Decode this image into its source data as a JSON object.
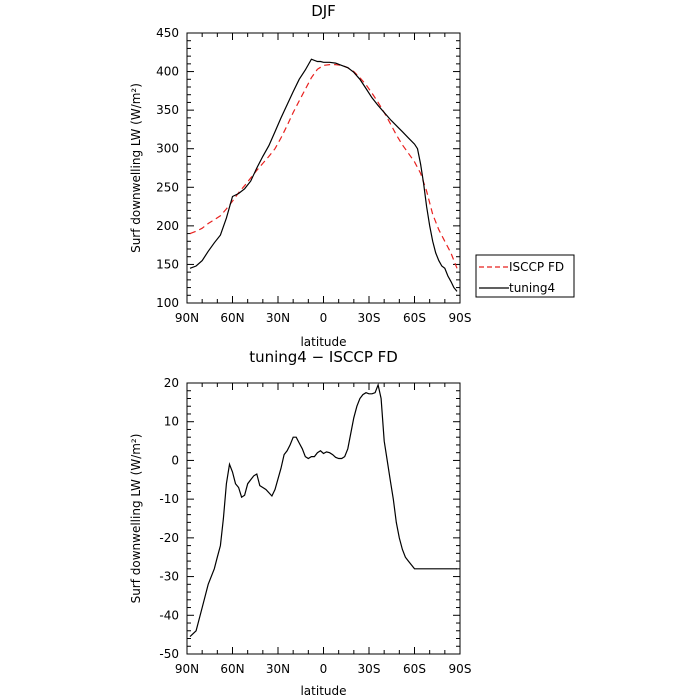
{
  "chart_data": [
    {
      "type": "line",
      "title": "DJF",
      "xlabel": "latitude",
      "ylabel": "Surf downwelling LW (W/m²)",
      "xlim": [
        -90,
        90
      ],
      "ylim": [
        100,
        450
      ],
      "x_ticks": [
        -90,
        -60,
        -30,
        0,
        30,
        60,
        90
      ],
      "x_tick_labels": [
        "90N",
        "60N",
        "30N",
        "0",
        "30S",
        "60S",
        "90S"
      ],
      "y_ticks": [
        100,
        150,
        200,
        250,
        300,
        350,
        400,
        450
      ],
      "grid": false,
      "legend": {
        "placement": "outside-right"
      },
      "series": [
        {
          "name": "ISCCP FD",
          "color": "#e8211f",
          "dash": "dashed",
          "x": [
            -88,
            -84,
            -80,
            -76,
            -72,
            -68,
            -64,
            -60,
            -56,
            -52,
            -48,
            -44,
            -40,
            -36,
            -32,
            -28,
            -24,
            -20,
            -16,
            -12,
            -8,
            -4,
            0,
            4,
            8,
            12,
            16,
            20,
            24,
            28,
            32,
            36,
            40,
            44,
            48,
            52,
            56,
            60,
            64,
            68,
            72,
            76,
            80,
            84,
            88
          ],
          "y": [
            190,
            193,
            197,
            203,
            208,
            213,
            222,
            232,
            243,
            252,
            262,
            272,
            281,
            290,
            300,
            314,
            330,
            347,
            362,
            377,
            392,
            403,
            408,
            409,
            409,
            408,
            405,
            400,
            392,
            383,
            372,
            360,
            347,
            333,
            318,
            305,
            294,
            283,
            268,
            245,
            215,
            195,
            180,
            165,
            145
          ]
        },
        {
          "name": "tuning4",
          "color": "#000000",
          "dash": "solid",
          "x": [
            -88,
            -84,
            -80,
            -76,
            -72,
            -68,
            -64,
            -60,
            -56,
            -52,
            -48,
            -44,
            -40,
            -36,
            -32,
            -28,
            -24,
            -20,
            -16,
            -12,
            -8,
            -4,
            -2,
            0,
            4,
            8,
            12,
            16,
            20,
            24,
            28,
            32,
            36,
            40,
            44,
            48,
            52,
            56,
            60,
            62,
            64,
            66,
            68,
            70,
            72,
            74,
            76,
            78,
            80,
            82,
            84,
            86,
            88
          ],
          "y": [
            145,
            148,
            155,
            167,
            178,
            188,
            210,
            238,
            242,
            248,
            258,
            275,
            290,
            304,
            322,
            340,
            357,
            374,
            390,
            402,
            416,
            413,
            413,
            412,
            412,
            411,
            408,
            405,
            399,
            390,
            378,
            366,
            356,
            347,
            338,
            330,
            322,
            314,
            306,
            300,
            280,
            255,
            225,
            200,
            180,
            165,
            155,
            148,
            145,
            135,
            128,
            120,
            115
          ]
        }
      ]
    },
    {
      "type": "line",
      "title": "tuning4 − ISCCP FD",
      "xlabel": "latitude",
      "ylabel": "Surf downwelling LW (W/m²)",
      "xlim": [
        -90,
        90
      ],
      "ylim": [
        -50,
        20
      ],
      "x_ticks": [
        -90,
        -60,
        -30,
        0,
        30,
        60,
        90
      ],
      "x_tick_labels": [
        "90N",
        "60N",
        "30N",
        "0",
        "30S",
        "60S",
        "90S"
      ],
      "y_ticks": [
        -50,
        -40,
        -30,
        -20,
        -10,
        0,
        10,
        20
      ],
      "grid": false,
      "series": [
        {
          "color": "#000000",
          "dash": "solid",
          "x": [
            -88,
            -84,
            -80,
            -76,
            -72,
            -70,
            -68,
            -66,
            -64,
            -62,
            -60,
            -58,
            -56,
            -54,
            -52,
            -50,
            -48,
            -46,
            -44,
            -42,
            -40,
            -38,
            -34,
            -32,
            -28,
            -26,
            -24,
            -22,
            -20,
            -18,
            -16,
            -14,
            -12,
            -10,
            -8,
            -6,
            -4,
            -2,
            0,
            2,
            4,
            6,
            8,
            10,
            12,
            14,
            16,
            18,
            20,
            22,
            24,
            26,
            28,
            30,
            32,
            34,
            36,
            38,
            40,
            42,
            44,
            46,
            48,
            50,
            52,
            54,
            56,
            58,
            60,
            62,
            64,
            66,
            68,
            70,
            72,
            74,
            76,
            78,
            80,
            82,
            84,
            86,
            88
          ],
          "y": [
            -45.5,
            -44,
            -38,
            -32,
            -28,
            -25,
            -22,
            -15,
            -6,
            -1,
            -3,
            -6,
            -7,
            -9.5,
            -9,
            -6,
            -5,
            -4,
            -3.5,
            -6.5,
            -7,
            -7.5,
            -9.2,
            -7.5,
            -2,
            1.5,
            2.5,
            4,
            6,
            6,
            4.5,
            3,
            1,
            0.5,
            1,
            1,
            2,
            2.5,
            1.8,
            2.2,
            2,
            1.5,
            0.8,
            0.5,
            0.5,
            1,
            3,
            7,
            11,
            14,
            16,
            17,
            17.5,
            17.2,
            17.2,
            17.5,
            19.5,
            16,
            5,
            0,
            -5,
            -10,
            -16,
            -20,
            -23,
            -25,
            -26,
            -27,
            -28,
            -28,
            -28,
            -28,
            -28,
            -28,
            -28,
            -28,
            -28,
            -28,
            -28,
            -28,
            -28,
            -28,
            -28
          ]
        }
      ]
    }
  ]
}
